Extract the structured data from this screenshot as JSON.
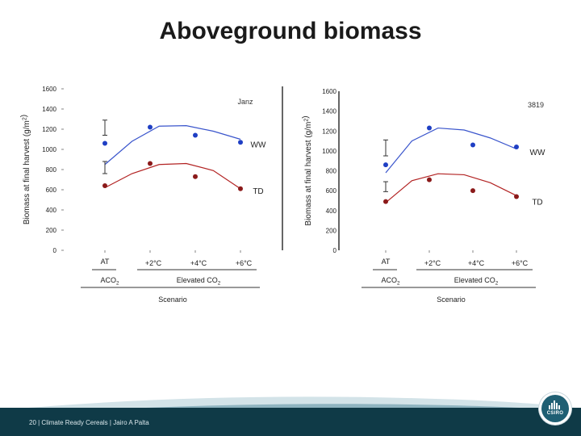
{
  "slide": {
    "title": "Aboveground biomass",
    "footer": "20  |  Climate Ready Cereals  |  Jairo  A Palta",
    "logo_text": "CSIRO",
    "colors": {
      "ww": "#1f3fc4",
      "td": "#8b1a1a",
      "ww_line": "#3a55cc",
      "td_line": "#b22222",
      "footer": "#0f3a47"
    }
  },
  "chart_data": [
    {
      "type": "scatter",
      "site": "Janz",
      "ylabel": "Biomass at final harvest (g/m^2)",
      "ylim": [
        0,
        1600
      ],
      "yticks": [
        "0",
        "200",
        "400",
        "600",
        "800",
        "1000",
        "1200",
        "1400",
        "1600"
      ],
      "categories": [
        "AT",
        "+2°C",
        "+4°C",
        "+6°C"
      ],
      "group_labels": [
        "ACO2",
        "Elevated CO2"
      ],
      "xlabel": "Scenario",
      "series": [
        {
          "name": "WW",
          "key": "ww",
          "values": [
            1060,
            1220,
            1140,
            1070
          ],
          "fit": [
            850,
            1080,
            1230,
            1235,
            1180,
            1100
          ]
        },
        {
          "name": "TD",
          "key": "td",
          "values": [
            640,
            860,
            730,
            610
          ],
          "fit": [
            620,
            760,
            850,
            860,
            790,
            610
          ]
        }
      ],
      "error_bars": [
        {
          "y_low": 1140,
          "y_high": 1290
        },
        {
          "y_low": 760,
          "y_high": 880
        }
      ]
    },
    {
      "type": "scatter",
      "site": "3819",
      "ylabel": "Biomass at final harvest (g/m^2)",
      "ylim": [
        0,
        1600
      ],
      "yticks": [
        "0",
        "200",
        "400",
        "600",
        "800",
        "1000",
        "1200",
        "1400",
        "1600"
      ],
      "categories": [
        "AT",
        "+2°C",
        "+4°C",
        "+6°C"
      ],
      "group_labels": [
        "ACO2",
        "Elevated CO2"
      ],
      "xlabel": "Scenario",
      "series": [
        {
          "name": "WW",
          "key": "ww",
          "values": [
            860,
            1230,
            1060,
            1040
          ],
          "fit": [
            780,
            1100,
            1230,
            1210,
            1130,
            1020
          ]
        },
        {
          "name": "TD",
          "key": "td",
          "values": [
            490,
            710,
            600,
            540
          ],
          "fit": [
            480,
            700,
            770,
            760,
            680,
            550
          ]
        }
      ],
      "error_bars": [
        {
          "y_low": 950,
          "y_high": 1110
        },
        {
          "y_low": 590,
          "y_high": 690
        }
      ]
    }
  ]
}
